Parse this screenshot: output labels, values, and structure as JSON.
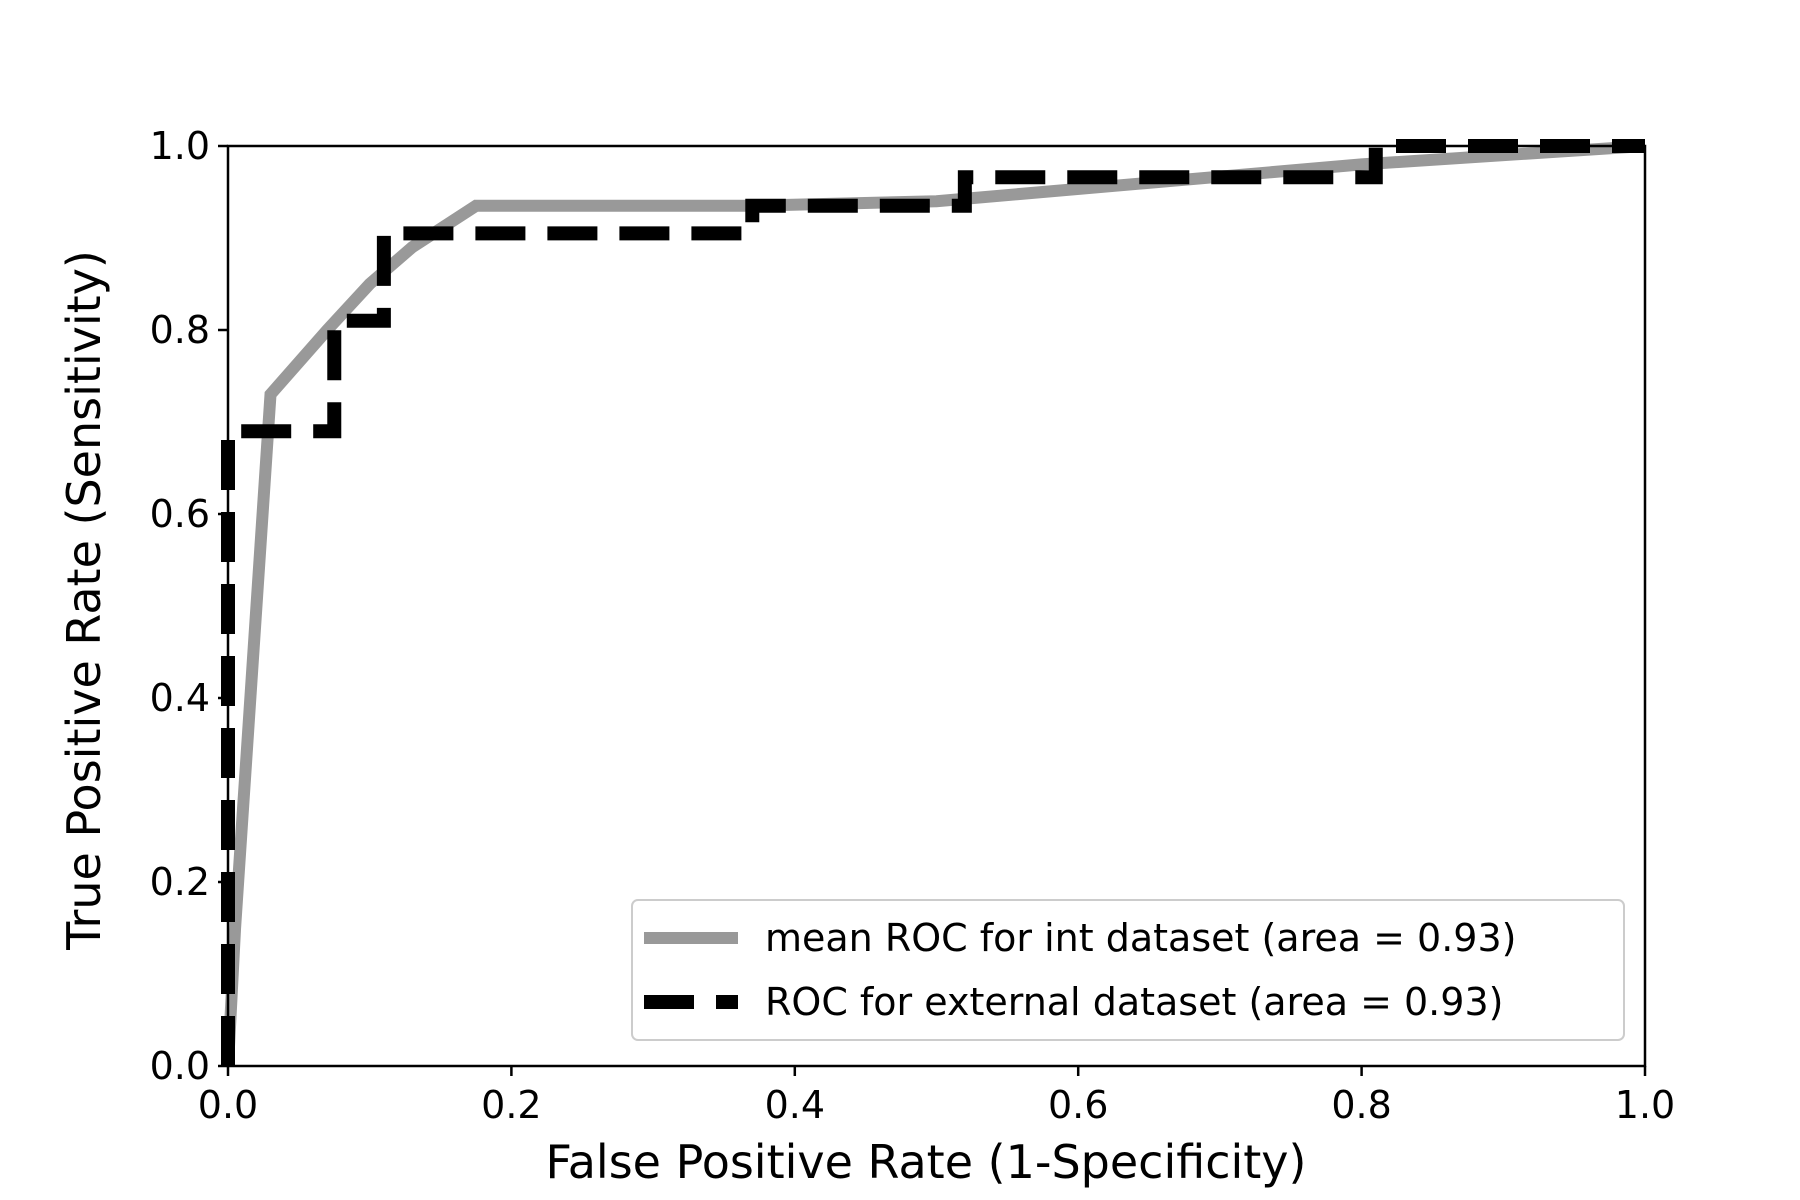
{
  "chart_data": {
    "type": "line",
    "xlabel": "False Positive Rate (1-Specificity)",
    "ylabel": "True Positive Rate (Sensitivity)",
    "xlim": [
      0.0,
      1.0
    ],
    "ylim": [
      0.0,
      1.0
    ],
    "x_ticks": [
      "0.0",
      "0.2",
      "0.4",
      "0.6",
      "0.8",
      "1.0"
    ],
    "y_ticks": [
      "0.0",
      "0.2",
      "0.4",
      "0.6",
      "0.8",
      "1.0"
    ],
    "grid": false,
    "legend_position": "lower-right",
    "series": [
      {
        "name": "mean ROC for int dataset (area = 0.93)",
        "color": "#999999",
        "style": "solid",
        "x": [
          0.0,
          0.005,
          0.03,
          0.07,
          0.1,
          0.13,
          0.175,
          0.37,
          0.5,
          0.8,
          1.0
        ],
        "y": [
          0.0,
          0.15,
          0.73,
          0.8,
          0.85,
          0.89,
          0.935,
          0.935,
          0.94,
          0.98,
          1.0
        ]
      },
      {
        "name": "ROC for external dataset (area = 0.93)",
        "color": "#000000",
        "style": "dashed",
        "x": [
          0.0,
          0.0,
          0.075,
          0.075,
          0.11,
          0.11,
          0.37,
          0.37,
          0.52,
          0.52,
          0.81,
          0.81,
          1.0
        ],
        "y": [
          0.0,
          0.69,
          0.69,
          0.81,
          0.81,
          0.905,
          0.905,
          0.935,
          0.935,
          0.966,
          0.966,
          1.0,
          1.0
        ]
      }
    ]
  }
}
